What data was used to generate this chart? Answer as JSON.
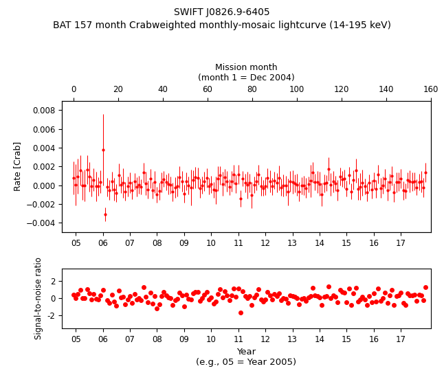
{
  "title_line1": "SWIFT J0826.9-6405",
  "title_line2": "BAT 157 month Crabweighted monthly-mosaic lightcurve (14-195 keV)",
  "mission_month_label": "Mission month",
  "mission_month_sublabel": "(month 1 = Dec 2004)",
  "year_label": "Year",
  "year_sublabel": "(e.g., 05 = Year 2005)",
  "rate_ylabel": "Rate [Crab]",
  "snr_ylabel": "Signal-to-noise ratio",
  "top_xticks": [
    0,
    20,
    40,
    60,
    80,
    100,
    120,
    140,
    160
  ],
  "rate_ylim": [
    -0.005,
    0.009
  ],
  "snr_ylim": [
    -3.5,
    3.5
  ],
  "color": "#ff0000",
  "n_points": 157,
  "special_idx": 13,
  "special_rate": 0.0038,
  "special_err": 0.0038,
  "special2_idx": 14,
  "special2_rate": -0.0031,
  "special2_err": 0.0007
}
